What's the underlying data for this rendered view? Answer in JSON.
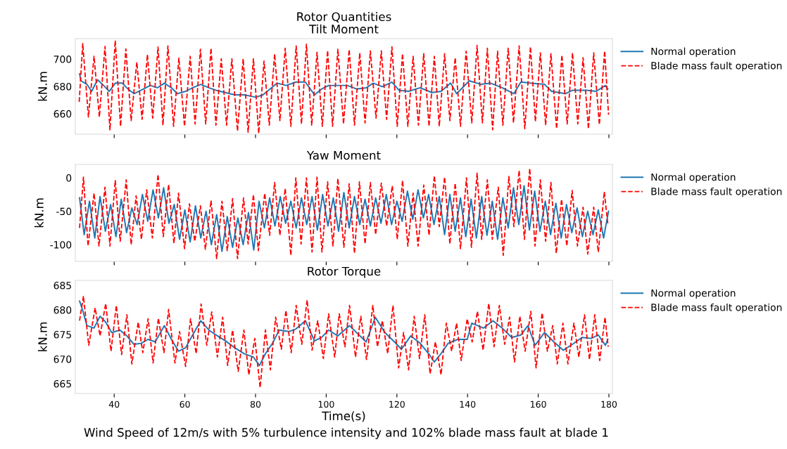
{
  "chart_data": [
    {
      "type": "line",
      "title": "Rotor Quantities",
      "subtitle": "Tilt Moment",
      "ylabel": "kN.m",
      "xlim": [
        29,
        181
      ],
      "xticks": [
        40,
        60,
        80,
        100,
        120,
        140,
        160,
        180
      ],
      "ylim": [
        645,
        715
      ],
      "yticks": [
        660,
        680,
        700
      ],
      "tick_labels": "y",
      "legend": "right",
      "grid": false,
      "series": [
        {
          "name": "Normal operation",
          "color": "#1f77b4",
          "line_style": "solid",
          "x": [
            30.2,
            30.6,
            32.3,
            33.6,
            35.3,
            37.0,
            38.6,
            40.3,
            42.3,
            43.9,
            45.6,
            47.6,
            50.2,
            52.2,
            54.2,
            56.2,
            57.9,
            60.2,
            62.2,
            64.5,
            66.8,
            68.8,
            71.5,
            74.1,
            76.8,
            80.1,
            82.1,
            84.1,
            86.1,
            88.7,
            91.4,
            94.1,
            96.7,
            98.7,
            100.7,
            103.3,
            106.0,
            108.6,
            111.3,
            113.3,
            115.9,
            118.6,
            120.6,
            123.3,
            126.6,
            129.9,
            132.5,
            135.2,
            136.9,
            140.5,
            143.8,
            146.5,
            149.8,
            153.1,
            155.1,
            157.8,
            161.8,
            163.8,
            167.7,
            169.7,
            173.7,
            176.4,
            179.0,
            179.7
          ],
          "values": [
            689.2,
            684.1,
            681.5,
            676.4,
            684.9,
            680.7,
            676.4,
            682.4,
            682.4,
            678.1,
            674.7,
            677.2,
            680.7,
            679.0,
            682.4,
            679.0,
            674.7,
            676.4,
            679.0,
            681.5,
            679.0,
            677.2,
            675.5,
            673.8,
            673.8,
            672.1,
            673.8,
            678.1,
            682.4,
            680.7,
            683.2,
            683.2,
            673.8,
            678.1,
            680.7,
            680.7,
            680.7,
            678.1,
            679.0,
            682.4,
            679.8,
            683.2,
            677.2,
            676.4,
            679.0,
            675.5,
            676.4,
            682.4,
            674.7,
            684.1,
            681.5,
            682.4,
            679.0,
            674.7,
            683.2,
            682.4,
            681.5,
            676.4,
            674.7,
            677.2,
            677.2,
            676.4,
            680.7,
            678.1
          ]
        },
        {
          "name": "Blade mass fault operation",
          "color": "#ff0000",
          "line_style": "dashed",
          "x": [
            30.1,
            31.1,
            32.7,
            34.3,
            35.8,
            37.4,
            38.8,
            40.3,
            41.8,
            43.3,
            44.8,
            46.4,
            47.9,
            49.4,
            50.9,
            52.4,
            53.8,
            55.2,
            56.8,
            58.3,
            59.9,
            61.5,
            62.9,
            64.4,
            65.9,
            67.4,
            68.8,
            70.3,
            71.8,
            73.3,
            74.9,
            76.5,
            77.9,
            79.4,
            80.9,
            82.4,
            83.9,
            85.4,
            86.9,
            88.4,
            90.0,
            91.5,
            93.0,
            94.4,
            95.9,
            97.4,
            98.9,
            100.4,
            101.8,
            103.3,
            104.9,
            106.5,
            108.0,
            109.5,
            111.0,
            112.5,
            114.1,
            115.6,
            117.1,
            118.6,
            120.1,
            121.6,
            123.1,
            124.6,
            126.1,
            127.6,
            129.1,
            130.6,
            132.0,
            133.5,
            135.0,
            136.5,
            138.0,
            139.6,
            141.2,
            142.7,
            144.2,
            145.6,
            147.1,
            148.5,
            150.0,
            151.5,
            153.0,
            154.6,
            156.2,
            157.8,
            159.2,
            160.6,
            162.1,
            163.6,
            165.2,
            166.7,
            168.2,
            169.7,
            171.2,
            172.7,
            174.2,
            175.7,
            177.3,
            178.8,
            179.9
          ],
          "values": [
            668.7,
            711.4,
            657.6,
            702,
            657.6,
            709.2,
            648.2,
            713.7,
            650.8,
            707.5,
            655,
            697.8,
            655.9,
            703.4,
            656.8,
            708.9,
            651.6,
            709.7,
            650.8,
            700.7,
            650.8,
            702,
            652.5,
            707.2,
            652.5,
            708,
            651.6,
            700.3,
            651.6,
            700.3,
            647.3,
            700.3,
            646.5,
            700.3,
            645.6,
            698.6,
            651.6,
            703.8,
            655,
            708,
            650.8,
            709.7,
            652.5,
            710.9,
            651.6,
            705,
            650.8,
            706.3,
            650.8,
            707.2,
            652.5,
            707,
            651.6,
            704.6,
            653.3,
            706,
            656.8,
            706,
            655.9,
            709,
            650.8,
            704,
            650.8,
            702,
            651.6,
            704,
            650.8,
            702,
            650.8,
            704,
            655,
            701,
            650.8,
            705.8,
            653.3,
            710,
            653.3,
            708,
            648.2,
            705.8,
            651.6,
            708,
            653.3,
            709.7,
            649,
            709,
            654.2,
            704.6,
            651.6,
            704,
            649,
            703,
            652.5,
            704.6,
            652.5,
            701,
            649,
            704.6,
            652,
            706,
            659.3
          ]
        }
      ]
    },
    {
      "type": "line",
      "title": "Yaw Moment",
      "ylabel": "kN.m",
      "xlim": [
        29,
        181
      ],
      "xticks": [
        40,
        60,
        80,
        100,
        120,
        140,
        160,
        180
      ],
      "ylim": [
        -125,
        20
      ],
      "yticks": [
        -100,
        -50,
        0
      ],
      "tick_labels": "y",
      "legend": "right",
      "grid": false,
      "series": [
        {
          "name": "Normal operation",
          "color": "#1f77b4",
          "line_style": "solid",
          "x": [
            30.2,
            31.5,
            33,
            34.5,
            36,
            37.5,
            39,
            40.5,
            42,
            43.5,
            45,
            46.5,
            48,
            49.5,
            51,
            52.5,
            54,
            55.5,
            57,
            58.5,
            60,
            61.5,
            63,
            64.5,
            66,
            67.5,
            69,
            70.5,
            72,
            73.5,
            75,
            76.5,
            78,
            79.5,
            81,
            82.5,
            84,
            85.5,
            87,
            88.5,
            90,
            91.5,
            93,
            94.5,
            96,
            97.5,
            99,
            100.5,
            102,
            103.5,
            105,
            106.5,
            108,
            109.5,
            111,
            112.5,
            114,
            115.5,
            117,
            118.5,
            120,
            121.5,
            123,
            124.5,
            126,
            127.5,
            129,
            130.5,
            132,
            133.5,
            135,
            136.5,
            138,
            139.5,
            141,
            142.5,
            144,
            145.5,
            147,
            148.5,
            150,
            151.5,
            153,
            154.5,
            156,
            157.5,
            159,
            160.5,
            162,
            163.5,
            165,
            166.5,
            168,
            169.5,
            171,
            172.5,
            174,
            175.5,
            177,
            178.5,
            179.9
          ],
          "values": [
            -30,
            -85,
            -35,
            -90,
            -28,
            -80,
            -40,
            -88,
            -32,
            -82,
            -45,
            -70,
            -25,
            -65,
            -18,
            -60,
            -15,
            -68,
            -40,
            -92,
            -48,
            -96,
            -42,
            -90,
            -50,
            -100,
            -55,
            -110,
            -58,
            -104,
            -60,
            -100,
            -52,
            -108,
            -35,
            -75,
            -30,
            -72,
            -28,
            -68,
            -35,
            -75,
            -30,
            -70,
            -28,
            -78,
            -25,
            -72,
            -30,
            -80,
            -22,
            -75,
            -28,
            -70,
            -32,
            -72,
            -30,
            -68,
            -25,
            -70,
            -35,
            -65,
            -20,
            -62,
            -18,
            -60,
            -25,
            -70,
            -28,
            -85,
            -25,
            -80,
            -30,
            -88,
            -32,
            -90,
            -28,
            -86,
            -35,
            -92,
            -30,
            -75,
            -15,
            -70,
            -12,
            -78,
            -20,
            -80,
            -35,
            -85,
            -38,
            -90,
            -40,
            -82,
            -45,
            -88,
            -50,
            -85,
            -48,
            -90,
            -50
          ]
        },
        {
          "name": "Blade mass fault operation",
          "color": "#ff0000",
          "line_style": "dashed",
          "x": [
            30.2,
            31.3,
            32.6,
            34.3,
            35.7,
            37.4,
            38.8,
            40.3,
            41.7,
            43.4,
            44.8,
            46.2,
            47.7,
            49.2,
            50.8,
            52.4,
            53.9,
            55.4,
            56.9,
            58.2,
            59.9,
            61.3,
            62.8,
            64.4,
            65.8,
            67.4,
            69.0,
            70.5,
            72.0,
            73.5,
            74.9,
            76.6,
            77.9,
            79.4,
            80.8,
            82.6,
            84.0,
            85.4,
            86.9,
            88.4,
            90.0,
            91.4,
            92.9,
            94.4,
            96.0,
            97.4,
            98.8,
            100.4,
            101.9,
            103.3,
            105.0,
            106.5,
            108.0,
            109.4,
            111.0,
            112.5,
            114.0,
            115.6,
            117.1,
            118.7,
            120.1,
            121.6,
            123.1,
            124.6,
            126.0,
            127.6,
            129.1,
            130.6,
            132.0,
            133.5,
            135.0,
            136.5,
            138.0,
            139.7,
            141.1,
            142.7,
            144.0,
            145.6,
            147.0,
            148.7,
            150.1,
            151.7,
            153.1,
            154.6,
            156.1,
            157.6,
            159.1,
            160.6,
            162.1,
            163.6,
            165.1,
            166.6,
            168.1,
            169.6,
            171.1,
            172.7,
            174.0,
            175.7,
            177.0,
            178.7,
            179.7
          ],
          "values": [
            -75,
            1,
            -102,
            -23,
            -102,
            -14,
            -102,
            -4,
            -95,
            -3,
            -100,
            -27,
            -92,
            -18,
            -90,
            5,
            -88,
            -10,
            -98,
            -23,
            -106,
            -39,
            -95,
            -42,
            -107,
            -34,
            -121,
            -35,
            -109,
            -31,
            -121,
            -30,
            -99,
            -25,
            -109,
            -23,
            -86,
            -7,
            -86,
            -16,
            -116,
            0,
            -99,
            0,
            -111,
            1,
            -111,
            -6,
            -102,
            -1,
            -104,
            -9,
            -113,
            -6,
            -99,
            -7,
            -85,
            -8,
            -72,
            -12,
            -92,
            -4,
            -102,
            -23,
            -102,
            -11,
            -86,
            3,
            -73,
            1,
            -99,
            -8,
            -106,
            0,
            -104,
            7,
            -92,
            -3,
            -92,
            -14,
            -116,
            2,
            -73,
            11,
            -92,
            14,
            -102,
            -3,
            -95,
            -7,
            -113,
            -32,
            -102,
            -19,
            -102,
            -44,
            -114,
            -44,
            -111,
            -21,
            -69
          ]
        }
      ]
    },
    {
      "type": "line",
      "title": "Rotor Torque",
      "xlabel": "Time(s)",
      "ylabel": "kN.m",
      "xlim": [
        29,
        181
      ],
      "xticks": [
        40,
        60,
        80,
        100,
        120,
        140,
        160,
        180
      ],
      "ylim": [
        663,
        686
      ],
      "yticks": [
        665,
        670,
        675,
        680,
        685
      ],
      "legend": "right",
      "grid": false,
      "annotations": [
        "Wind Speed of 12m/s with 5% turbulence intensity and 102% blade mass fault at blade 1"
      ],
      "series": [
        {
          "name": "Normal operation",
          "color": "#1f77b4",
          "line_style": "solid",
          "x": [
            30.2,
            31.0,
            32.3,
            34.3,
            36.0,
            37.6,
            39.3,
            41.6,
            43.6,
            45.6,
            47.6,
            49.6,
            51.6,
            54.2,
            56.2,
            58.2,
            60.2,
            62.2,
            64.5,
            66.8,
            68.8,
            71.5,
            74.1,
            76.8,
            79.4,
            81.1,
            82.8,
            84.8,
            86.7,
            89.4,
            91.4,
            94.1,
            96.7,
            98.7,
            100.7,
            103.3,
            106.6,
            109.3,
            111.3,
            113.9,
            116.6,
            119.3,
            121.3,
            123.9,
            126.6,
            129.2,
            130.6,
            132.5,
            134.5,
            137.2,
            139.9,
            141.2,
            144.5,
            147.2,
            149.8,
            152.5,
            155.1,
            157.1,
            159.1,
            161.8,
            164.4,
            167.1,
            169.7,
            172.4,
            175.0,
            177.0,
            179.0,
            179.7
          ],
          "values": [
            681.8,
            680.1,
            676.8,
            676.3,
            678.7,
            677.5,
            675.4,
            675.9,
            674.7,
            673.0,
            673.2,
            674.0,
            673.5,
            676.8,
            674.0,
            671.6,
            672.3,
            674.9,
            677.8,
            675.9,
            674.9,
            673.7,
            672.3,
            671.1,
            670.4,
            668.7,
            671.1,
            673.2,
            675.9,
            675.6,
            676.1,
            677.8,
            673.7,
            674.4,
            675.9,
            674.7,
            676.8,
            674.9,
            673.5,
            678.5,
            675.4,
            673.5,
            672.0,
            674.7,
            673.2,
            670.9,
            669.4,
            671.1,
            673.2,
            674.0,
            674.0,
            677.3,
            676.3,
            677.8,
            676.3,
            674.4,
            674.9,
            676.8,
            672.8,
            675.4,
            673.5,
            671.8,
            673.0,
            674.4,
            674.2,
            674.9,
            672.8,
            674.0
          ]
        },
        {
          "name": "Blade mass fault operation",
          "color": "#ff0000",
          "line_style": "dashed",
          "x": [
            30.2,
            31.3,
            32.8,
            34.6,
            36.0,
            37.6,
            39.1,
            40.6,
            42.1,
            43.6,
            45.0,
            46.8,
            48.1,
            49.6,
            51.0,
            52.5,
            54.1,
            55.4,
            57.2,
            58.5,
            60.2,
            61.6,
            63.2,
            64.6,
            66.2,
            67.6,
            69.2,
            70.7,
            72.1,
            73.5,
            75.1,
            76.7,
            78.1,
            79.8,
            81.3,
            82.8,
            84.2,
            85.7,
            87.3,
            88.6,
            90.1,
            91.5,
            93.1,
            94.6,
            96.0,
            97.6,
            99.2,
            100.7,
            102.4,
            103.7,
            105.3,
            106.6,
            108.3,
            109.8,
            111.4,
            113.2,
            114.5,
            115.9,
            117.4,
            118.9,
            120.5,
            121.9,
            123.3,
            124.9,
            126.4,
            127.9,
            129.4,
            130.9,
            132.5,
            134.0,
            135.5,
            136.9,
            138.2,
            139.9,
            141.3,
            142.8,
            144.4,
            146.0,
            147.5,
            149.0,
            150.5,
            151.9,
            153.3,
            154.8,
            156.3,
            157.9,
            159.4,
            161.1,
            162.6,
            164.1,
            165.4,
            167.0,
            168.4,
            170.1,
            171.5,
            173.1,
            174.5,
            176.0,
            177.4,
            178.9,
            179.8
          ],
          "values": [
            677.8,
            682.8,
            672.8,
            680.4,
            674.7,
            681.3,
            671.6,
            680.9,
            670.9,
            679.0,
            669.0,
            677.5,
            671.3,
            678.2,
            669.2,
            678.3,
            671.3,
            680.1,
            669.2,
            675.6,
            668.5,
            678.2,
            671.1,
            681.2,
            672.8,
            679.6,
            670.4,
            678.5,
            668.7,
            675.9,
            667.5,
            675.9,
            666.8,
            674.2,
            664.2,
            675.9,
            667.8,
            678.5,
            672.0,
            679.9,
            671.3,
            680.9,
            673.0,
            682.0,
            671.8,
            677.8,
            670.1,
            679.2,
            670.4,
            679.2,
            672.5,
            680.9,
            670.4,
            678.7,
            669.9,
            680.9,
            672.5,
            677.8,
            671.1,
            680.9,
            668.2,
            675.4,
            667.8,
            678.7,
            670.1,
            679.0,
            667.0,
            673.5,
            666.8,
            677.3,
            671.6,
            677.3,
            669.7,
            678.2,
            673.5,
            679.7,
            671.8,
            681.3,
            672.5,
            680.9,
            673.0,
            678.5,
            669.4,
            678.7,
            671.6,
            679.7,
            668.2,
            679.4,
            671.6,
            676.8,
            669.0,
            677.3,
            669.0,
            677.3,
            670.4,
            679.0,
            669.9,
            679.0,
            669.7,
            678.5,
            672.5
          ]
        }
      ]
    }
  ]
}
